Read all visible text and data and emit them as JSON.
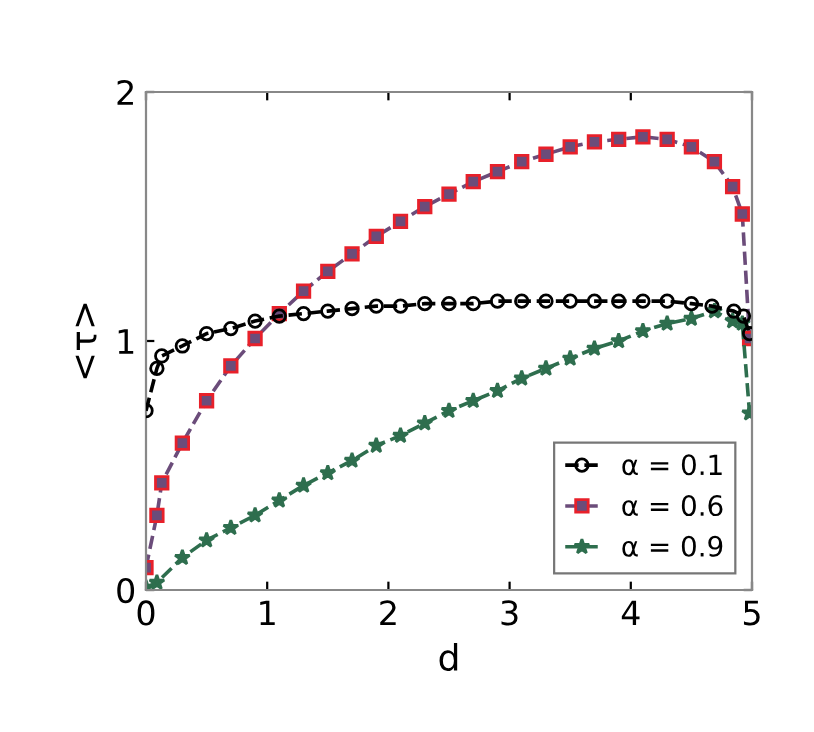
{
  "chart_data": {
    "type": "line",
    "xlabel": "d",
    "ylabel": "<τ>",
    "xlim": [
      0,
      5
    ],
    "ylim": [
      0,
      2
    ],
    "xticks": [
      0,
      1,
      2,
      3,
      4,
      5
    ],
    "yticks": [
      0,
      1,
      2
    ],
    "grid": false,
    "legend": "bottom right",
    "line_style": "dashed",
    "series": [
      {
        "name": "α = 0.1",
        "color": "#000000",
        "marker": "circle",
        "x": [
          0,
          0.09,
          0.13,
          0.3,
          0.5,
          0.7,
          0.9,
          1.1,
          1.3,
          1.5,
          1.7,
          1.9,
          2.1,
          2.3,
          2.5,
          2.7,
          2.9,
          3.1,
          3.3,
          3.5,
          3.7,
          3.9,
          4.1,
          4.3,
          4.5,
          4.67,
          4.85,
          4.93,
          4.98
        ],
        "values": [
          0.72,
          0.89,
          0.94,
          0.98,
          1.03,
          1.05,
          1.08,
          1.1,
          1.11,
          1.12,
          1.13,
          1.14,
          1.14,
          1.15,
          1.15,
          1.15,
          1.16,
          1.16,
          1.16,
          1.16,
          1.16,
          1.16,
          1.16,
          1.16,
          1.15,
          1.14,
          1.12,
          1.1,
          1.03
        ]
      },
      {
        "name": "α = 0.6",
        "color": "#6b4c7a",
        "marker": "square",
        "x": [
          0,
          0.09,
          0.13,
          0.3,
          0.5,
          0.7,
          0.9,
          1.1,
          1.3,
          1.5,
          1.7,
          1.9,
          2.1,
          2.3,
          2.5,
          2.7,
          2.9,
          3.1,
          3.3,
          3.5,
          3.7,
          3.9,
          4.1,
          4.3,
          4.5,
          4.69,
          4.84,
          4.92,
          4.98
        ],
        "values": [
          0.09,
          0.3,
          0.43,
          0.59,
          0.76,
          0.9,
          1.01,
          1.11,
          1.2,
          1.28,
          1.35,
          1.42,
          1.48,
          1.54,
          1.59,
          1.64,
          1.68,
          1.72,
          1.75,
          1.78,
          1.8,
          1.81,
          1.82,
          1.81,
          1.78,
          1.72,
          1.62,
          1.51,
          1.01
        ]
      },
      {
        "name": "α = 0.9",
        "color": "#2e6e4e",
        "marker": "star",
        "x": [
          0,
          0.09,
          0.3,
          0.5,
          0.7,
          0.9,
          1.1,
          1.3,
          1.5,
          1.7,
          1.9,
          2.1,
          2.3,
          2.5,
          2.7,
          2.9,
          3.1,
          3.3,
          3.5,
          3.7,
          3.9,
          4.1,
          4.3,
          4.5,
          4.69,
          4.84,
          4.92,
          4.98
        ],
        "values": [
          0.01,
          0.03,
          0.13,
          0.2,
          0.25,
          0.3,
          0.36,
          0.42,
          0.47,
          0.52,
          0.58,
          0.62,
          0.67,
          0.72,
          0.76,
          0.8,
          0.85,
          0.89,
          0.93,
          0.97,
          1.0,
          1.04,
          1.07,
          1.09,
          1.12,
          1.08,
          1.07,
          0.71
        ]
      }
    ]
  }
}
